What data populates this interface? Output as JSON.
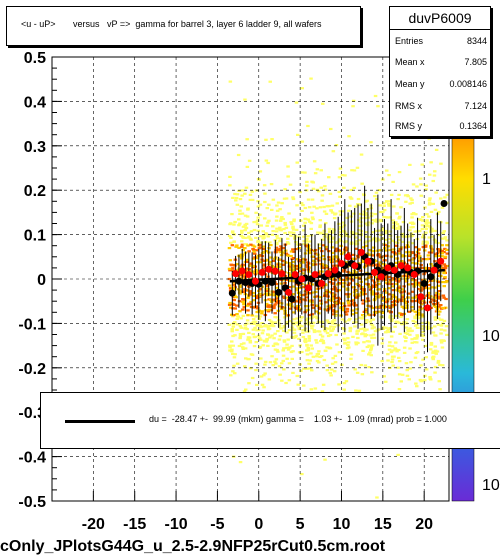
{
  "chart_data": {
    "type": "scatter",
    "title": "<u - uP>       versus   vP =>  gamma for barrel 3, layer 6 ladder 9, all wafers",
    "xlabel": "",
    "ylabel": "",
    "xlim": [
      -25,
      23
    ],
    "ylim": [
      -0.5,
      0.5
    ],
    "x_ticks": [
      -20,
      -15,
      -10,
      -5,
      0,
      5,
      10,
      15,
      20
    ],
    "x_tick_labels": [
      "-20",
      "-15",
      "-10",
      "-5",
      "0",
      "5",
      "10",
      "15",
      "20"
    ],
    "y_ticks": [
      -0.5,
      -0.4,
      -0.3,
      -0.2,
      -0.1,
      0,
      0.1,
      0.2,
      0.3,
      0.4,
      0.5
    ],
    "y_tick_labels": [
      "-0.5",
      "-0.4",
      "-0.3",
      "-0.2",
      "-0.1",
      "0",
      "0.1",
      "0.2",
      "0.3",
      "0.4",
      "0.5"
    ],
    "grid": true,
    "colorbar_labels": [
      "1",
      "10",
      "10"
    ],
    "series": [
      {
        "marker": "black-circle",
        "x": [
          -3.2,
          -2.4,
          -1.6,
          -0.8,
          0.0,
          0.8,
          1.6,
          2.4,
          3.2,
          4.0,
          4.8,
          5.6,
          6.4,
          7.2,
          8.0,
          8.8,
          9.6,
          10.4,
          11.2,
          12.0,
          12.8,
          13.6,
          14.4,
          15.2,
          16.0,
          16.8,
          17.6,
          18.4,
          19.2,
          20.0,
          20.8,
          21.6,
          22.4
        ],
        "y": [
          -0.032,
          -0.005,
          -0.008,
          -0.01,
          -0.012,
          -0.005,
          -0.008,
          -0.03,
          -0.02,
          -0.045,
          -0.005,
          0.002,
          0.0,
          -0.01,
          0.005,
          0.01,
          0.01,
          0.03,
          0.035,
          0.028,
          0.05,
          0.04,
          0.02,
          0.015,
          0.03,
          0.01,
          0.02,
          0.015,
          0.018,
          -0.01,
          0.005,
          0.03,
          0.17
        ],
        "yerr": [
          0.05,
          0.06,
          0.07,
          0.07,
          0.08,
          0.09,
          0.07,
          0.08,
          0.1,
          0.09,
          0.1,
          0.12,
          0.1,
          0.09,
          0.12,
          0.1,
          0.13,
          0.15,
          0.12,
          0.14,
          0.16,
          0.13,
          0.17,
          0.12,
          0.15,
          0.1,
          0.14,
          0.09,
          0.12,
          0.11,
          0.13,
          0.12,
          0.0
        ]
      },
      {
        "marker": "red-circle",
        "x": [
          -2.8,
          -2.0,
          -1.2,
          -0.4,
          0.4,
          1.2,
          2.0,
          2.8,
          3.6,
          4.4,
          5.2,
          6.0,
          6.8,
          7.6,
          8.4,
          9.2,
          10.0,
          10.8,
          11.6,
          12.4,
          13.2,
          14.0,
          14.8,
          15.6,
          16.4,
          17.2,
          18.0,
          18.8,
          19.6,
          20.4,
          21.2,
          22.0
        ],
        "y": [
          0.012,
          0.018,
          0.01,
          -0.005,
          0.015,
          0.022,
          0.018,
          0.012,
          -0.03,
          0.01,
          0.0,
          -0.02,
          0.01,
          -0.01,
          0.012,
          0.02,
          0.035,
          0.05,
          0.03,
          0.06,
          0.04,
          0.015,
          0.005,
          0.025,
          0.02,
          0.03,
          0.025,
          0.01,
          -0.04,
          -0.065,
          0.02,
          0.04
        ],
        "yerr": [
          0.04,
          0.05,
          0.05,
          0.06,
          0.07,
          0.06,
          0.07,
          0.08,
          0.08,
          0.09,
          0.08,
          0.1,
          0.09,
          0.1,
          0.09,
          0.11,
          0.12,
          0.1,
          0.13,
          0.11,
          0.12,
          0.1,
          0.12,
          0.1,
          0.11,
          0.09,
          0.1,
          0.08,
          0.09,
          0.1,
          0.08,
          0.09
        ]
      }
    ],
    "fit_line": {
      "x": [
        -3.5,
        22.5
      ],
      "y": [
        -0.005,
        0.02
      ]
    }
  },
  "stats": {
    "name": "duvP6009",
    "rows": [
      {
        "label": "Entries",
        "value": "8344"
      },
      {
        "label": "Mean x",
        "value": "7.805"
      },
      {
        "label": "Mean y",
        "value": "0.008146"
      },
      {
        "label": "RMS x",
        "value": "7.124"
      },
      {
        "label": "RMS y",
        "value": "0.1364"
      }
    ]
  },
  "fit_text": "du =  -28.47 +-  99.99 (mkm) gamma =    1.03 +-  1.09 (mrad) prob = 1.000",
  "file_label": "cOnly_JPlotsG44G_u_2.5-2.9NFP25rCut0.5cm.root",
  "colors": {
    "marker_black": "#000000",
    "marker_red": "#ff0000",
    "density_low": "#ffff66",
    "density_mid": "#ffcc00",
    "density_high": "#ff6600"
  }
}
